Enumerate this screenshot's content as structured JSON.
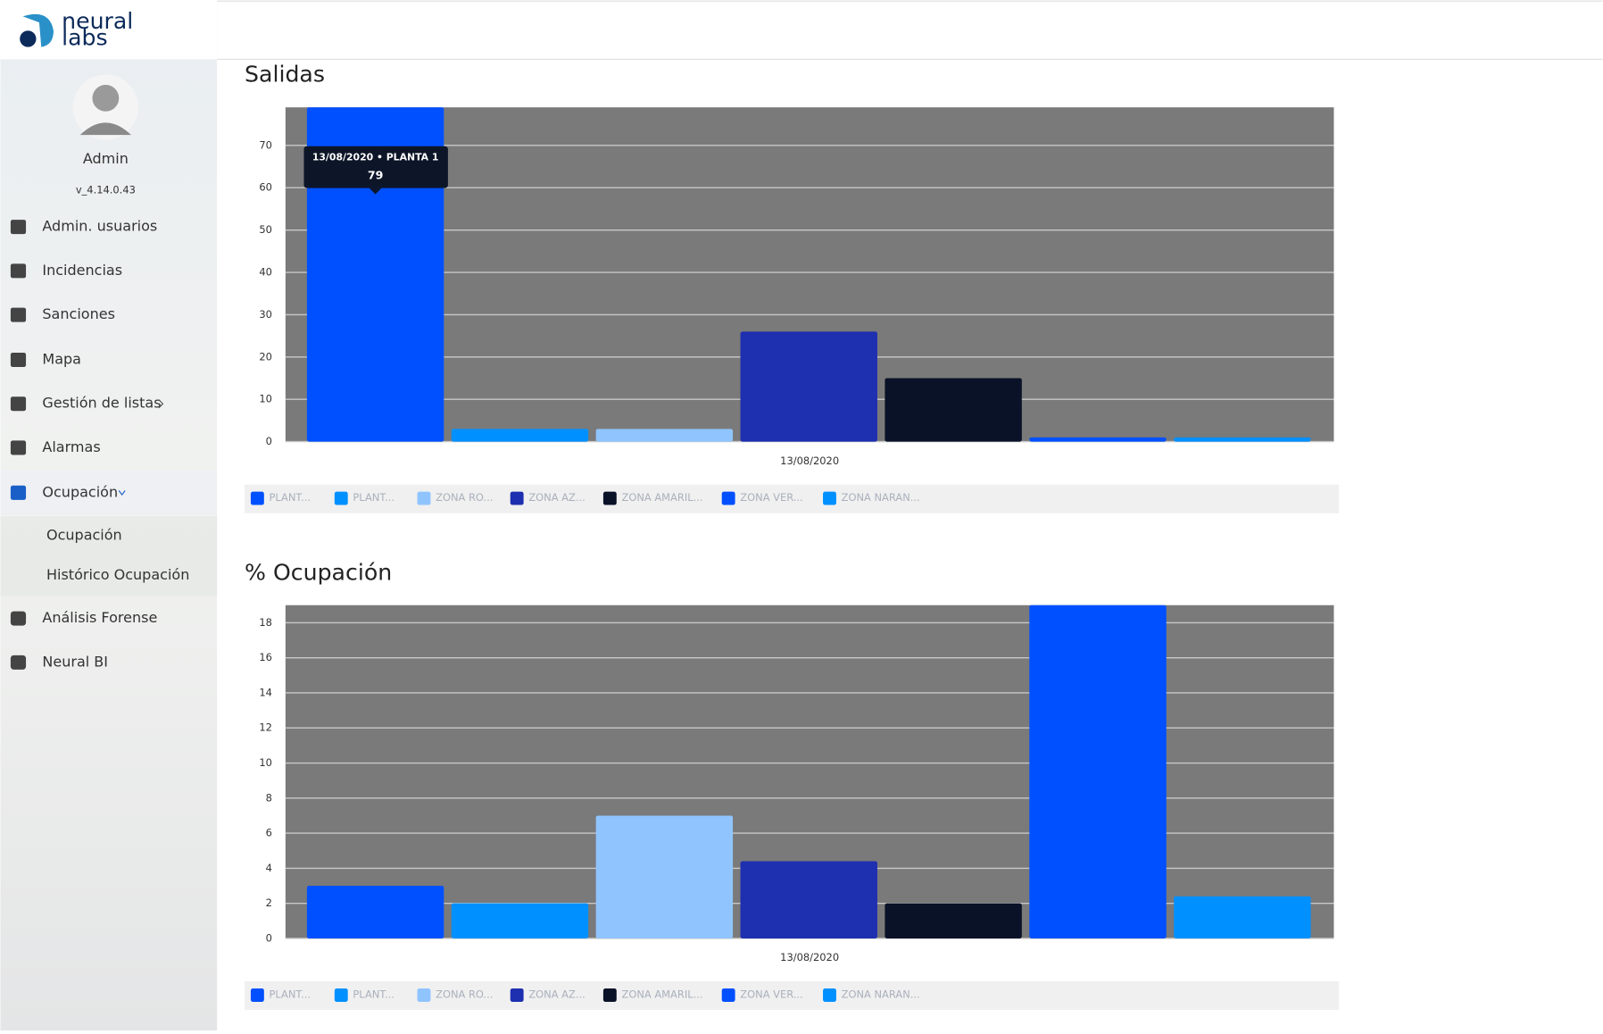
{
  "sidebar": {
    "brand": [
      "neural",
      "labs"
    ],
    "user": "Admin",
    "version": "v_4.14.0.43",
    "menu": [
      "Admin. usuarios",
      "Incidencias",
      "Sanciones",
      "Mapa",
      "Gestión de listas",
      "Alarmas",
      "Ocupación"
    ],
    "submenu": [
      "Ocupación",
      "Histórico Ocupación"
    ],
    "menu_after": [
      "Análisis Forense",
      "Neural BI"
    ]
  },
  "chart_data": [
    {
      "type": "bar",
      "title": "Salidas",
      "categories": [
        "13/08/2020"
      ],
      "series": [
        {
          "name": "PLANT...",
          "color": "#0050ff",
          "values": [
            79
          ]
        },
        {
          "name": "PLANT...",
          "color": "#0090ff",
          "values": [
            3
          ]
        },
        {
          "name": "ZONA RO...",
          "color": "#90c4ff",
          "values": [
            3
          ]
        },
        {
          "name": "ZONA AZ...",
          "color": "#1e2fb0",
          "values": [
            26
          ]
        },
        {
          "name": "ZONA AMARIL...",
          "color": "#0a1228",
          "values": [
            15
          ]
        },
        {
          "name": "ZONA VER...",
          "color": "#0050ff",
          "values": [
            1
          ]
        },
        {
          "name": "ZONA NARAN...",
          "color": "#0090ff",
          "values": [
            1
          ]
        }
      ],
      "ylim": [
        0,
        79
      ],
      "yticks": [
        0,
        10,
        20,
        30,
        40,
        50,
        60,
        70
      ],
      "grid": true,
      "tooltip": {
        "title": "13/08/2020 • PLANTA 1"
      }
    },
    {
      "type": "bar",
      "title": "% Ocupación",
      "categories": [
        "13/08/2020"
      ],
      "series": [
        {
          "name": "PLANT...",
          "color": "#0050ff",
          "values": [
            3
          ]
        },
        {
          "name": "PLANT...",
          "color": "#0090ff",
          "values": [
            2
          ]
        },
        {
          "name": "ZONA RO...",
          "color": "#90c4ff",
          "values": [
            7
          ]
        },
        {
          "name": "ZONA AZ...",
          "color": "#1e2fb0",
          "values": [
            4.4
          ]
        },
        {
          "name": "ZONA AMARIL...",
          "color": "#0a1228",
          "values": [
            2
          ]
        },
        {
          "name": "ZONA VER...",
          "color": "#0050ff",
          "values": [
            19
          ]
        },
        {
          "name": "ZONA NARAN...",
          "color": "#0090ff",
          "values": [
            2.4
          ]
        }
      ],
      "ylim": [
        0,
        19
      ],
      "yticks": [
        0,
        2,
        4,
        6,
        8,
        10,
        12,
        14,
        16,
        18
      ],
      "grid": true
    }
  ]
}
